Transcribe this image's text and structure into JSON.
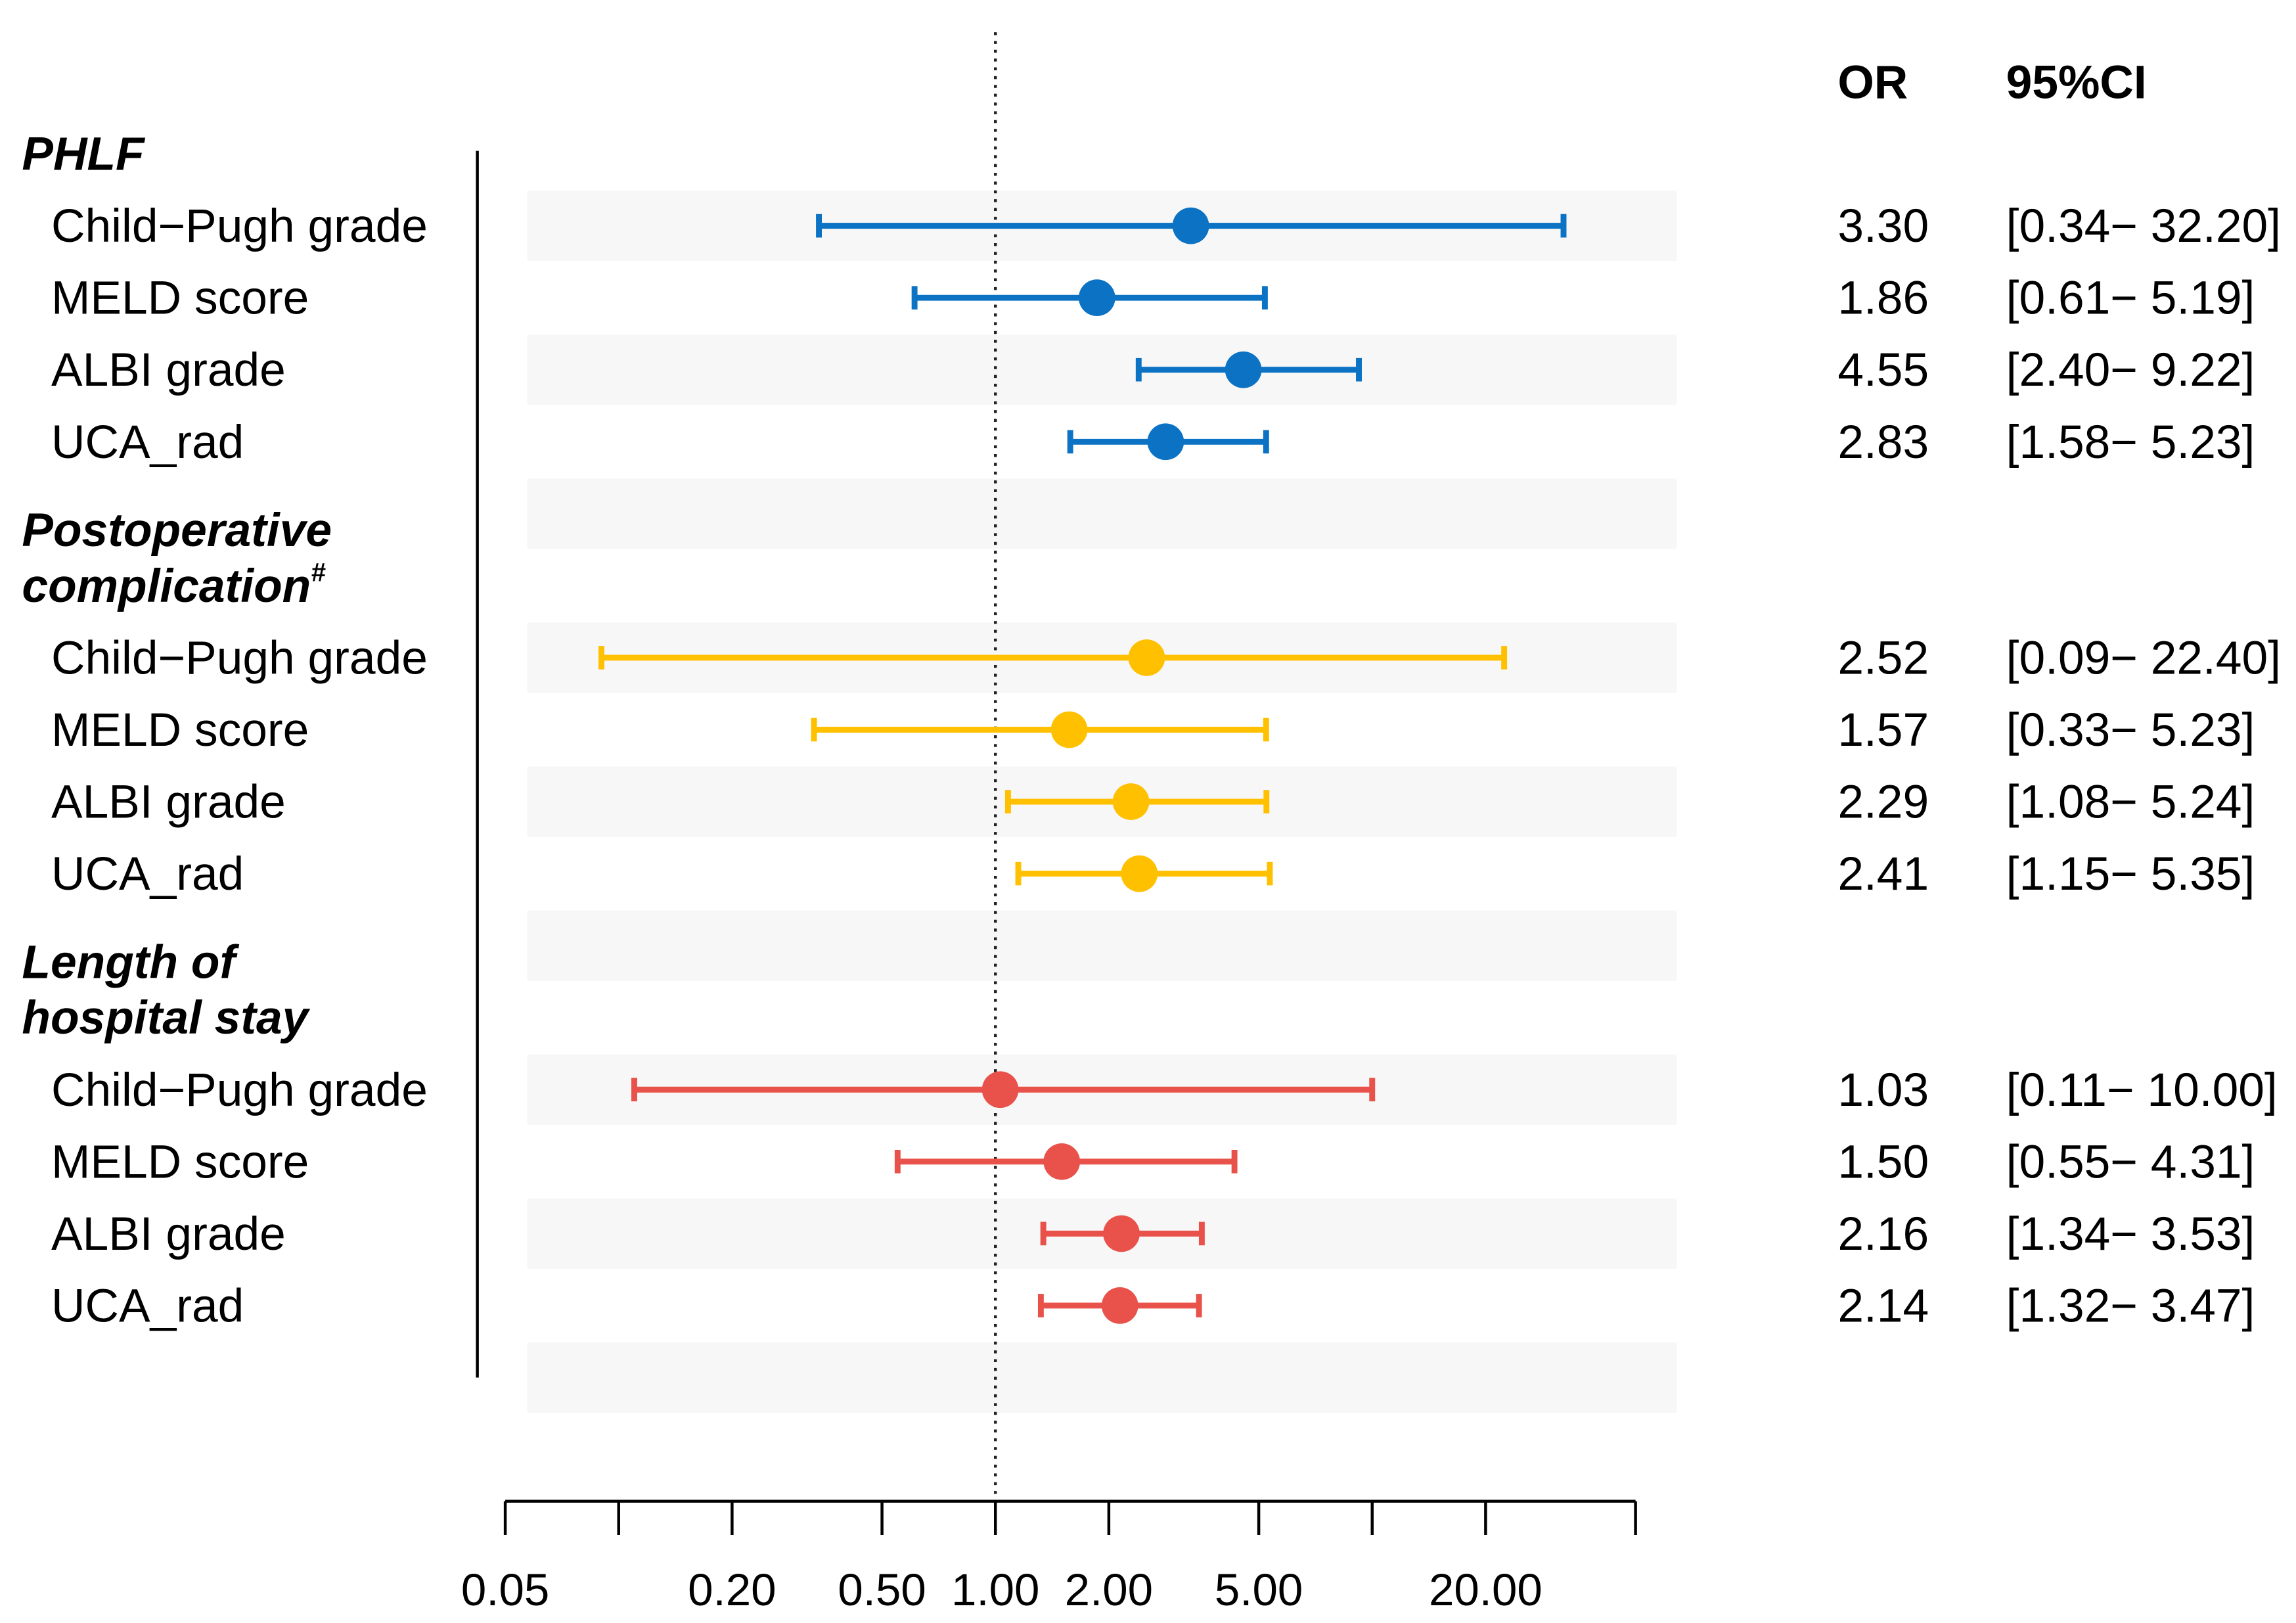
{
  "chart_data": {
    "type": "scatter",
    "column_headers": {
      "or": "OR",
      "ci": "95%CI"
    },
    "reference_value": 1,
    "log_x": true,
    "xlim": [
      0.05,
      50
    ],
    "xticks": [
      0.05,
      0.1,
      0.2,
      0.5,
      1,
      2,
      5,
      10,
      20,
      50
    ],
    "xtick_labels": [
      {
        "value": 0.05,
        "text": "0.05"
      },
      {
        "value": 0.2,
        "text": "0.20"
      },
      {
        "value": 0.5,
        "text": "0.50"
      },
      {
        "value": 1,
        "text": "1.00"
      },
      {
        "value": 2,
        "text": "2.00"
      },
      {
        "value": 5,
        "text": "5.00"
      },
      {
        "value": 20,
        "text": "20.00"
      }
    ],
    "groups": [
      {
        "label_lines": [
          "PHLF"
        ],
        "color": "#0B72C4",
        "rows": [
          {
            "label": "Child−Pugh grade",
            "or": 3.3,
            "lower": 0.34,
            "upper": 32.2,
            "or_text": "3.30",
            "ci_text": "[0.34− 32.20]"
          },
          {
            "label": "MELD score",
            "or": 1.86,
            "lower": 0.61,
            "upper": 5.19,
            "or_text": "1.86",
            "ci_text": "[0.61− 5.19]"
          },
          {
            "label": "ALBI grade",
            "or": 4.55,
            "lower": 2.4,
            "upper": 9.22,
            "or_text": "4.55",
            "ci_text": "[2.40− 9.22]"
          },
          {
            "label": "UCA_rad",
            "or": 2.83,
            "lower": 1.58,
            "upper": 5.23,
            "or_text": "2.83",
            "ci_text": "[1.58− 5.23]"
          }
        ]
      },
      {
        "label_lines": [
          "Postoperative",
          "complication"
        ],
        "superscript": "#",
        "color": "#FFC000",
        "rows": [
          {
            "label": "Child−Pugh grade",
            "or": 2.52,
            "lower": 0.09,
            "upper": 22.4,
            "or_text": "2.52",
            "ci_text": "[0.09− 22.40]"
          },
          {
            "label": "MELD score",
            "or": 1.57,
            "lower": 0.33,
            "upper": 5.23,
            "or_text": "1.57",
            "ci_text": "[0.33− 5.23]"
          },
          {
            "label": "ALBI grade",
            "or": 2.29,
            "lower": 1.08,
            "upper": 5.24,
            "or_text": "2.29",
            "ci_text": "[1.08− 5.24]"
          },
          {
            "label": "UCA_rad",
            "or": 2.41,
            "lower": 1.15,
            "upper": 5.35,
            "or_text": "2.41",
            "ci_text": "[1.15− 5.35]"
          }
        ]
      },
      {
        "label_lines": [
          "Length of",
          "hospital stay"
        ],
        "color": "#E8524A",
        "rows": [
          {
            "label": "Child−Pugh grade",
            "or": 1.03,
            "lower": 0.11,
            "upper": 10.0,
            "or_text": "1.03",
            "ci_text": "[0.11− 10.00]"
          },
          {
            "label": "MELD score",
            "or": 1.5,
            "lower": 0.55,
            "upper": 4.31,
            "or_text": "1.50",
            "ci_text": "[0.55− 4.31]"
          },
          {
            "label": "ALBI grade",
            "or": 2.16,
            "lower": 1.34,
            "upper": 3.53,
            "or_text": "2.16",
            "ci_text": "[1.34− 3.53]"
          },
          {
            "label": "UCA_rad",
            "or": 2.14,
            "lower": 1.32,
            "upper": 3.47,
            "or_text": "2.14",
            "ci_text": "[1.32− 3.47]"
          }
        ]
      }
    ]
  }
}
